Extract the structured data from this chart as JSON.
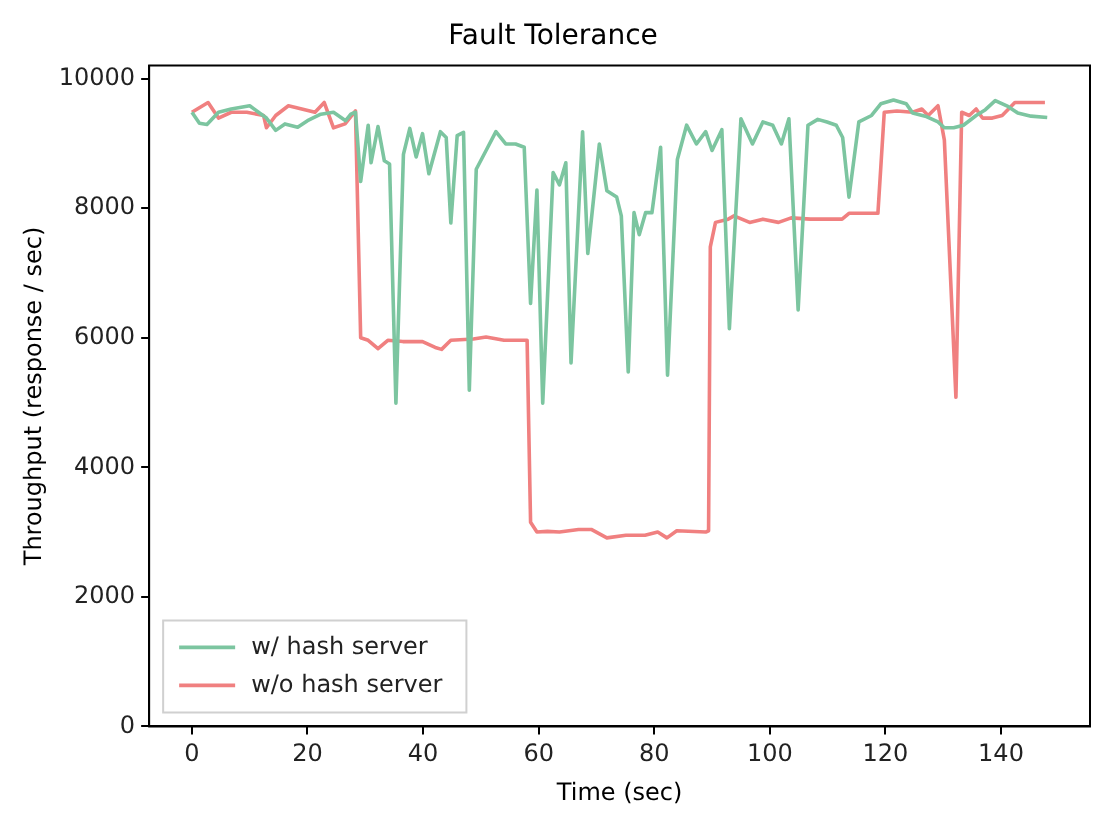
{
  "chart_data": {
    "type": "line",
    "title": "Fault Tolerance",
    "xlabel": "Time (sec)",
    "ylabel": "Throughput (response / sec)",
    "xlim": [
      -7.4,
      155.4
    ],
    "xticks": [
      0,
      20,
      40,
      60,
      80,
      100,
      120,
      140
    ],
    "ylim": [
      0,
      10200
    ],
    "yticks": [
      0,
      2000,
      4000,
      6000,
      8000,
      10000
    ],
    "grid": false,
    "legend": "bottom left",
    "marker": "none",
    "line_style": "solid",
    "series": [
      {
        "name": "w/ hash server",
        "color": "#7cc5a0",
        "x": [
          0,
          1.3,
          2.6,
          4.6,
          6.8,
          10,
          12.9,
          14.5,
          16.1,
          18.3,
          20,
          22.3,
          24.5,
          26.6,
          27.5,
          28.3,
          29.2,
          30.5,
          31,
          32.2,
          33.3,
          34.2,
          35.3,
          36.6,
          37.7,
          38.8,
          39.9,
          41,
          43,
          44,
          44.8,
          45.9,
          47,
          48,
          49.2,
          50.9,
          52.6,
          54.3,
          56,
          57.5,
          58.6,
          59.7,
          60.7,
          62.5,
          63.6,
          64.7,
          65.6,
          67.6,
          68.5,
          70.5,
          71.8,
          73.5,
          74.3,
          75.5,
          76.5,
          77.4,
          78.5,
          79.6,
          81.1,
          82.3,
          84,
          85.6,
          87.3,
          88.9,
          90,
          91.7,
          93,
          95,
          97,
          98.8,
          100.5,
          102,
          103.3,
          104.9,
          106.6,
          108.3,
          109.9,
          111.5,
          112.6,
          113.7,
          115.4,
          117.6,
          119.2,
          121.4,
          123.6,
          124.7,
          126.9,
          129.1,
          130.2,
          131.8,
          133.5,
          135.7,
          137.3,
          139,
          141.2,
          142.9,
          145.2,
          148
        ],
        "values": [
          9480,
          9310,
          9290,
          9480,
          9530,
          9580,
          9390,
          9200,
          9300,
          9250,
          9350,
          9450,
          9480,
          9350,
          9450,
          9480,
          8410,
          9280,
          8700,
          9260,
          8730,
          8680,
          4990,
          8830,
          9230,
          8790,
          9150,
          8530,
          9180,
          9090,
          7770,
          9120,
          9170,
          5190,
          8600,
          8890,
          9180,
          8990,
          8990,
          8940,
          6530,
          8280,
          4990,
          8550,
          8360,
          8700,
          5610,
          9180,
          7300,
          8990,
          8270,
          8170,
          7880,
          5470,
          7930,
          7590,
          7930,
          7930,
          8940,
          5420,
          8750,
          9280,
          8990,
          9180,
          8890,
          9210,
          6140,
          9380,
          8990,
          9330,
          9280,
          8990,
          9380,
          6430,
          9280,
          9370,
          9330,
          9280,
          9090,
          8170,
          9330,
          9430,
          9610,
          9670,
          9610,
          9470,
          9420,
          9330,
          9240,
          9240,
          9280,
          9430,
          9520,
          9660,
          9570,
          9470,
          9420,
          9400
        ]
      },
      {
        "name": "w/o hash server",
        "color": "#f08080",
        "x": [
          0,
          2.8,
          4.6,
          6.8,
          9.5,
          12.4,
          12.9,
          14.5,
          16.7,
          19,
          21.3,
          22.9,
          24.5,
          26.5,
          28.3,
          29.2,
          30.5,
          32.2,
          33.9,
          36.5,
          39.9,
          42.1,
          43.2,
          44.8,
          48.7,
          50.9,
          54,
          57.5,
          58,
          58.6,
          59.7,
          61.5,
          63.6,
          66.9,
          69.1,
          71.8,
          75.1,
          78.4,
          80.6,
          82.2,
          83.9,
          88.9,
          89.4,
          89.7,
          90.6,
          92.8,
          93.8,
          96.5,
          98.8,
          101.5,
          103.7,
          107,
          110.3,
          112.5,
          113.7,
          118.7,
          119.8,
          122,
          124.7,
          126.3,
          127.4,
          129.1,
          130.2,
          132.2,
          133.2,
          134.5,
          135.7,
          136.8,
          138.5,
          140.2,
          142.4,
          144.6,
          147.6
        ],
        "values": [
          9480,
          9630,
          9390,
          9480,
          9480,
          9430,
          9240,
          9430,
          9580,
          9530,
          9480,
          9630,
          9240,
          9300,
          9500,
          6000,
          5960,
          5830,
          5960,
          5940,
          5940,
          5850,
          5820,
          5960,
          5980,
          6010,
          5960,
          5960,
          5960,
          3150,
          3000,
          3010,
          3000,
          3040,
          3040,
          2910,
          2950,
          2950,
          3000,
          2910,
          3020,
          3000,
          3020,
          7400,
          7780,
          7830,
          7880,
          7780,
          7830,
          7780,
          7850,
          7830,
          7830,
          7830,
          7920,
          7920,
          9480,
          9500,
          9480,
          9530,
          9430,
          9580,
          9050,
          5080,
          9480,
          9430,
          9530,
          9390,
          9390,
          9430,
          9630,
          9630,
          9630
        ]
      }
    ]
  }
}
